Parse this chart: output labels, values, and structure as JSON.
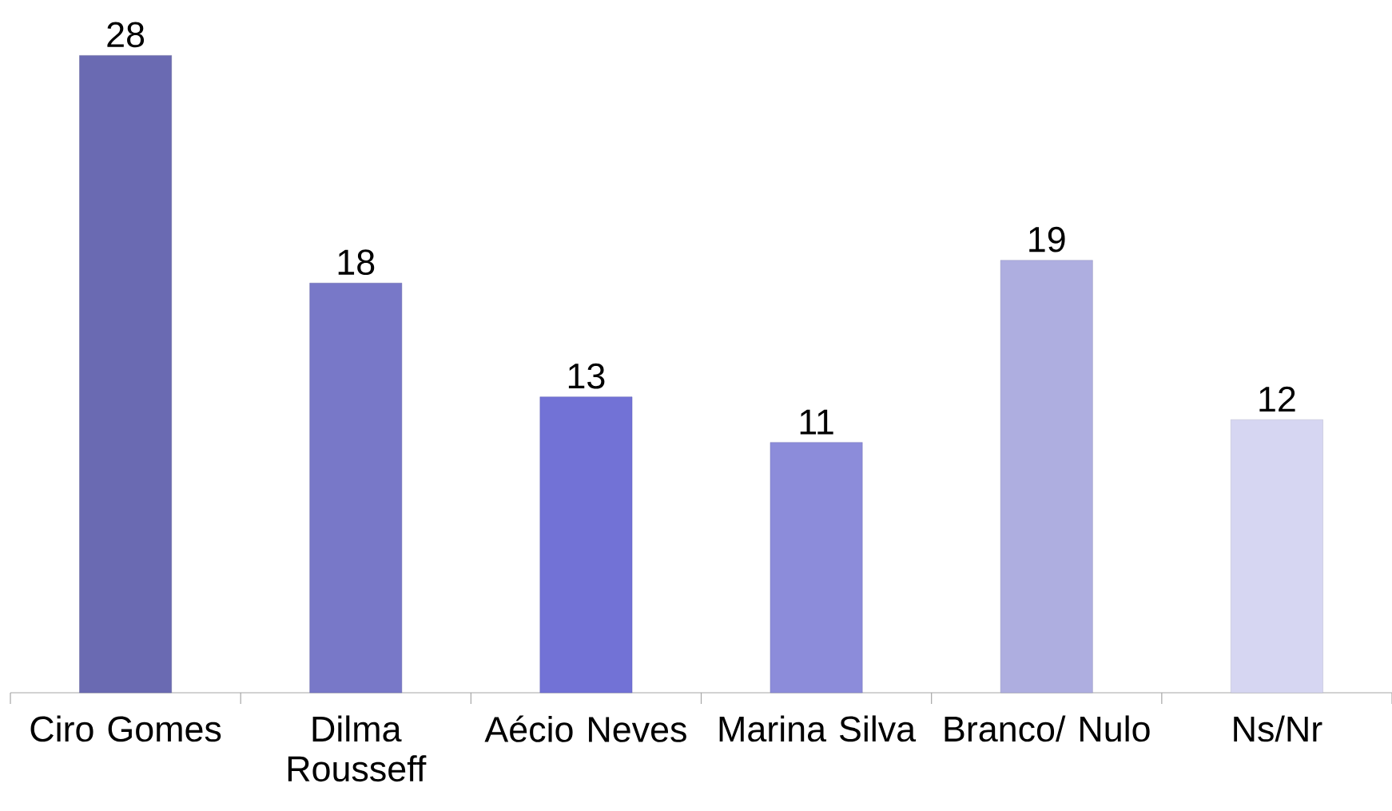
{
  "chart_data": {
    "type": "bar",
    "categories": [
      "Ciro Gomes",
      "Dilma Rousseff",
      "Aécio Neves",
      "Marina Silva",
      "Branco/ Nulo",
      "Ns/Nr"
    ],
    "values": [
      28,
      18,
      13,
      11,
      19,
      12
    ],
    "colors": [
      "#6a6ab2",
      "#7878c8",
      "#7272d6",
      "#8c8cda",
      "#aeaee0",
      "#d6d6f2"
    ],
    "data_labels": true
  }
}
